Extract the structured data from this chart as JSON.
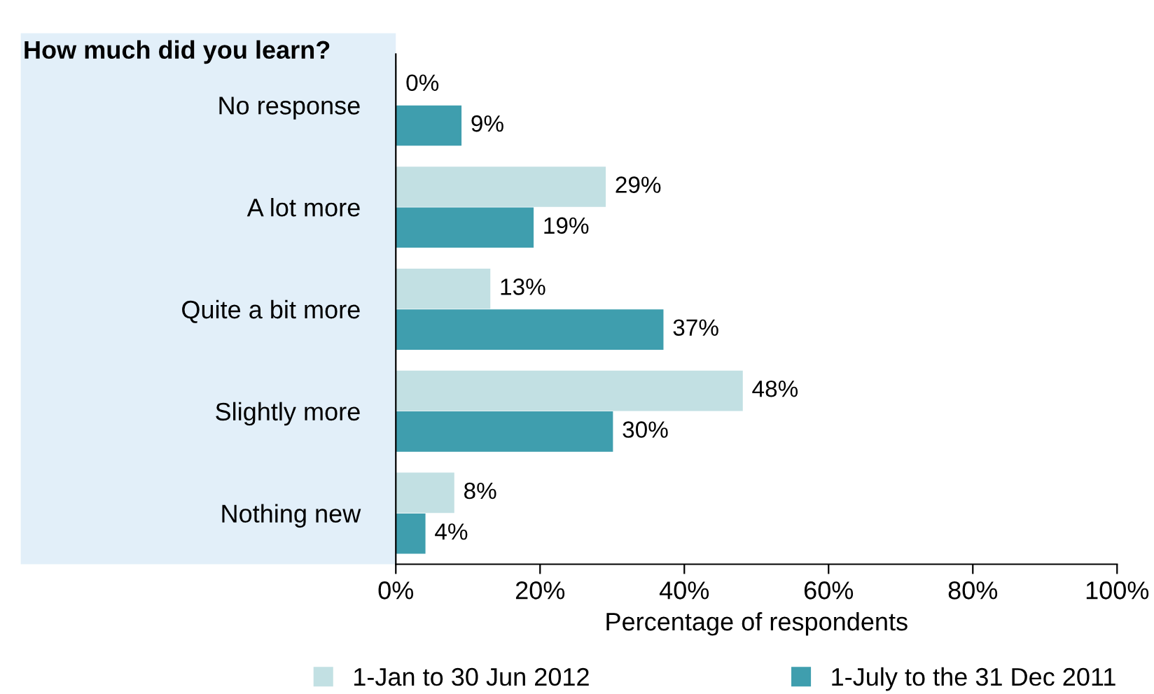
{
  "chart_data": {
    "type": "bar",
    "orientation": "horizontal",
    "title": "How much did you learn?",
    "xlabel": "Percentage of respondents",
    "categories": [
      "No response",
      "A lot more",
      "Quite a bit more",
      "Slightly more",
      "Nothing new"
    ],
    "series": [
      {
        "name": "1-Jan to 30 Jun 2012",
        "color": "#c2e0e3",
        "values": [
          0,
          29,
          13,
          48,
          8
        ],
        "value_labels": [
          "0%",
          "29%",
          "13%",
          "48%",
          "8%"
        ]
      },
      {
        "name": "1-July to the 31 Dec 2011",
        "color": "#3f9eae",
        "values": [
          9,
          19,
          37,
          30,
          4
        ],
        "value_labels": [
          "9%",
          "19%",
          "37%",
          "30%",
          "4%"
        ]
      }
    ],
    "xlim": [
      0,
      100
    ],
    "xticks": [
      {
        "value": 0,
        "label": "0%"
      },
      {
        "value": 20,
        "label": "20%"
      },
      {
        "value": 40,
        "label": "40%"
      },
      {
        "value": 60,
        "label": "60%"
      },
      {
        "value": 80,
        "label": "80%"
      },
      {
        "value": 100,
        "label": "100%"
      }
    ],
    "grid": false,
    "legend": "bottom"
  }
}
